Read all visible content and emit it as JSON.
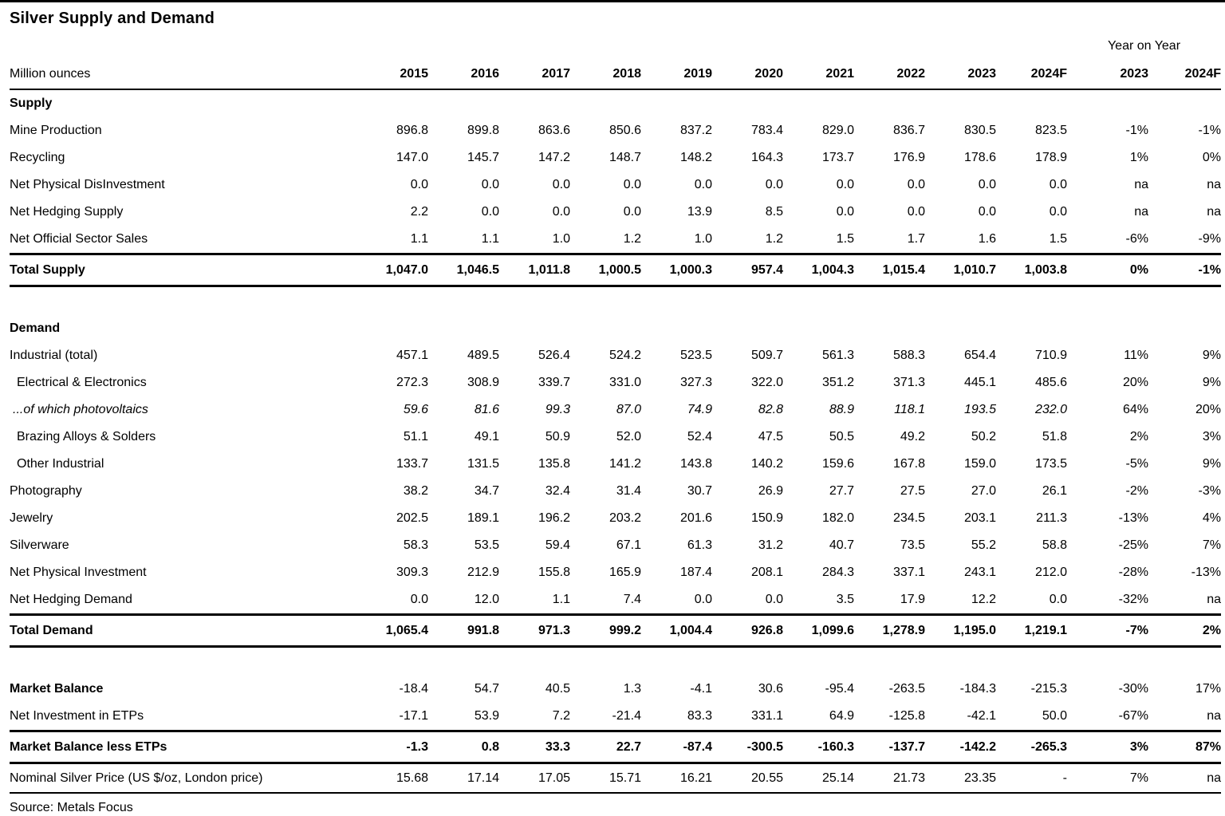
{
  "title": "Silver Supply and Demand",
  "unit_label": "Million ounces",
  "year_on_year_label": "Year on Year",
  "columns": [
    "2015",
    "2016",
    "2017",
    "2018",
    "2019",
    "2020",
    "2021",
    "2022",
    "2023",
    "2024F"
  ],
  "yoy_columns": [
    "2023",
    "2024F"
  ],
  "rows": [
    {
      "label": "Supply",
      "style": "section",
      "values": [],
      "yoy": []
    },
    {
      "label": "Mine Production",
      "style": "plain",
      "values": [
        "896.8",
        "899.8",
        "863.6",
        "850.6",
        "837.2",
        "783.4",
        "829.0",
        "836.7",
        "830.5",
        "823.5"
      ],
      "yoy": [
        "-1%",
        "-1%"
      ]
    },
    {
      "label": "Recycling",
      "style": "plain",
      "values": [
        "147.0",
        "145.7",
        "147.2",
        "148.7",
        "148.2",
        "164.3",
        "173.7",
        "176.9",
        "178.6",
        "178.9"
      ],
      "yoy": [
        "1%",
        "0%"
      ]
    },
    {
      "label": "Net Physical DisInvestment",
      "style": "plain",
      "values": [
        "0.0",
        "0.0",
        "0.0",
        "0.0",
        "0.0",
        "0.0",
        "0.0",
        "0.0",
        "0.0",
        "0.0"
      ],
      "yoy": [
        "na",
        "na"
      ]
    },
    {
      "label": "Net Hedging Supply",
      "style": "plain",
      "values": [
        "2.2",
        "0.0",
        "0.0",
        "0.0",
        "13.9",
        "8.5",
        "0.0",
        "0.0",
        "0.0",
        "0.0"
      ],
      "yoy": [
        "na",
        "na"
      ]
    },
    {
      "label": "Net Official Sector Sales",
      "style": "plain",
      "values": [
        "1.1",
        "1.1",
        "1.0",
        "1.2",
        "1.0",
        "1.2",
        "1.5",
        "1.7",
        "1.6",
        "1.5"
      ],
      "yoy": [
        "-6%",
        "-9%"
      ]
    },
    {
      "label": "Total Supply",
      "style": "total",
      "values": [
        "1,047.0",
        "1,046.5",
        "1,011.8",
        "1,000.5",
        "1,000.3",
        "957.4",
        "1,004.3",
        "1,015.4",
        "1,010.7",
        "1,003.8"
      ],
      "yoy": [
        "0%",
        "-1%"
      ]
    },
    {
      "label": "",
      "style": "spacer",
      "values": [],
      "yoy": []
    },
    {
      "label": "Demand",
      "style": "section",
      "values": [],
      "yoy": []
    },
    {
      "label": "Industrial (total)",
      "style": "plain",
      "values": [
        "457.1",
        "489.5",
        "526.4",
        "524.2",
        "523.5",
        "509.7",
        "561.3",
        "588.3",
        "654.4",
        "710.9"
      ],
      "yoy": [
        "11%",
        "9%"
      ]
    },
    {
      "label": "Electrical & Electronics",
      "style": "indent",
      "values": [
        "272.3",
        "308.9",
        "339.7",
        "331.0",
        "327.3",
        "322.0",
        "351.2",
        "371.3",
        "445.1",
        "485.6"
      ],
      "yoy": [
        "20%",
        "9%"
      ]
    },
    {
      "label": "...of which photovoltaics",
      "style": "italic",
      "values": [
        "59.6",
        "81.6",
        "99.3",
        "87.0",
        "74.9",
        "82.8",
        "88.9",
        "118.1",
        "193.5",
        "232.0"
      ],
      "yoy": [
        "64%",
        "20%"
      ]
    },
    {
      "label": "Brazing Alloys & Solders",
      "style": "indent",
      "values": [
        "51.1",
        "49.1",
        "50.9",
        "52.0",
        "52.4",
        "47.5",
        "50.5",
        "49.2",
        "50.2",
        "51.8"
      ],
      "yoy": [
        "2%",
        "3%"
      ]
    },
    {
      "label": "Other Industrial",
      "style": "indent",
      "values": [
        "133.7",
        "131.5",
        "135.8",
        "141.2",
        "143.8",
        "140.2",
        "159.6",
        "167.8",
        "159.0",
        "173.5"
      ],
      "yoy": [
        "-5%",
        "9%"
      ]
    },
    {
      "label": "Photography",
      "style": "plain",
      "values": [
        "38.2",
        "34.7",
        "32.4",
        "31.4",
        "30.7",
        "26.9",
        "27.7",
        "27.5",
        "27.0",
        "26.1"
      ],
      "yoy": [
        "-2%",
        "-3%"
      ]
    },
    {
      "label": "Jewelry",
      "style": "plain",
      "values": [
        "202.5",
        "189.1",
        "196.2",
        "203.2",
        "201.6",
        "150.9",
        "182.0",
        "234.5",
        "203.1",
        "211.3"
      ],
      "yoy": [
        "-13%",
        "4%"
      ]
    },
    {
      "label": "Silverware",
      "style": "plain",
      "values": [
        "58.3",
        "53.5",
        "59.4",
        "67.1",
        "61.3",
        "31.2",
        "40.7",
        "73.5",
        "55.2",
        "58.8"
      ],
      "yoy": [
        "-25%",
        "7%"
      ]
    },
    {
      "label": "Net Physical Investment",
      "style": "plain",
      "values": [
        "309.3",
        "212.9",
        "155.8",
        "165.9",
        "187.4",
        "208.1",
        "284.3",
        "337.1",
        "243.1",
        "212.0"
      ],
      "yoy": [
        "-28%",
        "-13%"
      ]
    },
    {
      "label": "Net Hedging Demand",
      "style": "plain",
      "values": [
        "0.0",
        "12.0",
        "1.1",
        "7.4",
        "0.0",
        "0.0",
        "3.5",
        "17.9",
        "12.2",
        "0.0"
      ],
      "yoy": [
        "-32%",
        "na"
      ]
    },
    {
      "label": "Total Demand",
      "style": "total",
      "values": [
        "1,065.4",
        "991.8",
        "971.3",
        "999.2",
        "1,004.4",
        "926.8",
        "1,099.6",
        "1,278.9",
        "1,195.0",
        "1,219.1"
      ],
      "yoy": [
        "-7%",
        "2%"
      ]
    },
    {
      "label": "",
      "style": "spacer",
      "values": [],
      "yoy": []
    },
    {
      "label": "Market Balance",
      "style": "bold-label",
      "values": [
        "-18.4",
        "54.7",
        "40.5",
        "1.3",
        "-4.1",
        "30.6",
        "-95.4",
        "-263.5",
        "-184.3",
        "-215.3"
      ],
      "yoy": [
        "-30%",
        "17%"
      ]
    },
    {
      "label": "Net Investment in ETPs",
      "style": "plain",
      "values": [
        "-17.1",
        "53.9",
        "7.2",
        "-21.4",
        "83.3",
        "331.1",
        "64.9",
        "-125.8",
        "-42.1",
        "50.0"
      ],
      "yoy": [
        "-67%",
        "na"
      ]
    },
    {
      "label": "Market Balance less ETPs",
      "style": "total",
      "values": [
        "-1.3",
        "0.8",
        "33.3",
        "22.7",
        "-87.4",
        "-300.5",
        "-160.3",
        "-137.7",
        "-142.2",
        "-265.3"
      ],
      "yoy": [
        "3%",
        "87%"
      ]
    },
    {
      "label": "Nominal Silver Price (US $/oz, London price)",
      "style": "price",
      "values": [
        "15.68",
        "17.14",
        "17.05",
        "15.71",
        "16.21",
        "20.55",
        "25.14",
        "21.73",
        "23.35",
        "-"
      ],
      "yoy": [
        "7%",
        "na"
      ]
    }
  ],
  "source": "Source: Metals Focus"
}
